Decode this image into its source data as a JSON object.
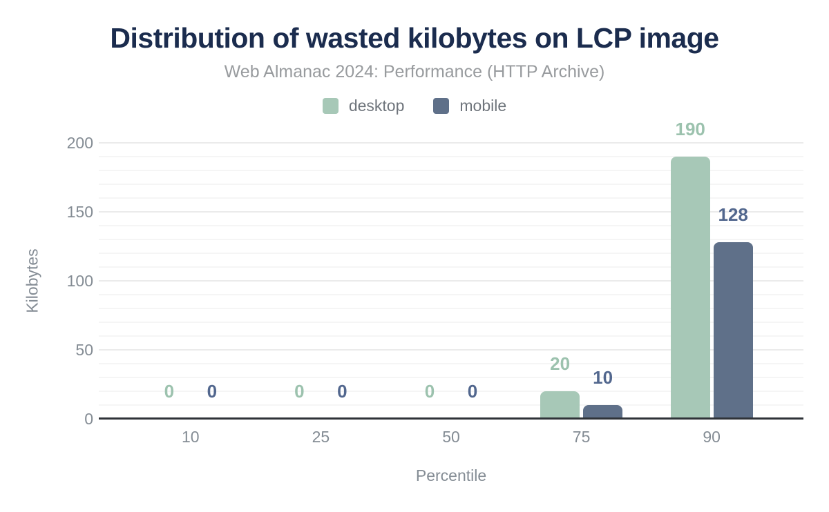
{
  "chart_data": {
    "type": "bar",
    "title": "Distribution of wasted kilobytes on LCP image",
    "subtitle": "Web Almanac 2024: Performance (HTTP Archive)",
    "categories": [
      "10",
      "25",
      "50",
      "75",
      "90"
    ],
    "series": [
      {
        "name": "desktop",
        "color": "#a7c8b7",
        "label_color": "#9cc2ae",
        "values": [
          0,
          0,
          0,
          20,
          190
        ]
      },
      {
        "name": "mobile",
        "color": "#5f7089",
        "label_color": "#52678e",
        "values": [
          0,
          0,
          0,
          10,
          128
        ]
      }
    ],
    "xlabel": "Percentile",
    "ylabel": "Kilobytes",
    "ylim": [
      0,
      200
    ],
    "yticks": [
      0,
      50,
      100,
      150,
      200
    ],
    "grid": {
      "minor_step": 10,
      "major_step": 50,
      "show": true
    },
    "legend_position": "top-center",
    "bar_value_labels": true
  },
  "style": {
    "background": "#ffffff",
    "title_color": "#1b2c4e",
    "subtitle_color": "#989b9e",
    "axis_text_color": "#848c94",
    "legend_text_color": "#6e747b",
    "axis_line_color": "#2f3338",
    "minor_grid_color": "#f5f5f5",
    "major_grid_color": "#ebebeb"
  }
}
